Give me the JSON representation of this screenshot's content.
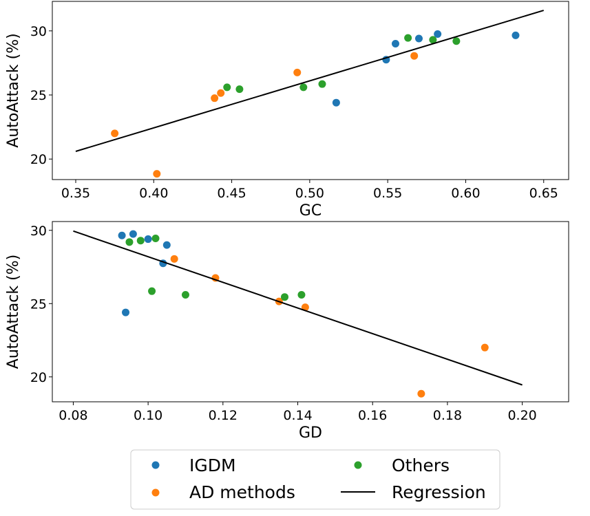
{
  "colors": {
    "IGDM": "#1f77b4",
    "AD methods": "#ff7f0e",
    "Others": "#2ca02c",
    "Regression": "#000000"
  },
  "legend": {
    "igdm": "IGDM",
    "ad": "AD methods",
    "others": "Others",
    "regression": "Regression"
  },
  "chart_data": [
    {
      "type": "scatter",
      "xlabel": "GC",
      "ylabel": "AutoAttack (%)",
      "xlim": [
        0.335,
        0.666
      ],
      "ylim": [
        18.4,
        32.3
      ],
      "xticks": [
        "0.35",
        "0.40",
        "0.45",
        "0.50",
        "0.55",
        "0.60",
        "0.65"
      ],
      "yticks": [
        "20",
        "25",
        "30"
      ],
      "series": [
        {
          "name": "IGDM",
          "points": [
            [
              0.517,
              24.4
            ],
            [
              0.549,
              27.75
            ],
            [
              0.555,
              29.0
            ],
            [
              0.57,
              29.4
            ],
            [
              0.582,
              29.75
            ],
            [
              0.632,
              29.65
            ]
          ]
        },
        {
          "name": "AD methods",
          "points": [
            [
              0.375,
              22.0
            ],
            [
              0.402,
              18.85
            ],
            [
              0.439,
              24.75
            ],
            [
              0.443,
              25.15
            ],
            [
              0.492,
              26.75
            ],
            [
              0.567,
              28.05
            ]
          ]
        },
        {
          "name": "Others",
          "points": [
            [
              0.447,
              25.6
            ],
            [
              0.455,
              25.45
            ],
            [
              0.496,
              25.6
            ],
            [
              0.508,
              25.85
            ],
            [
              0.563,
              29.45
            ],
            [
              0.579,
              29.3
            ],
            [
              0.594,
              29.2
            ]
          ]
        }
      ],
      "regression": [
        [
          0.35,
          20.6
        ],
        [
          0.65,
          31.6
        ]
      ]
    },
    {
      "type": "scatter",
      "xlabel": "GD",
      "ylabel": "AutoAttack (%)",
      "xlim": [
        0.0744,
        0.2124
      ],
      "ylim": [
        18.3,
        30.6
      ],
      "xticks": [
        "0.08",
        "0.10",
        "0.12",
        "0.14",
        "0.16",
        "0.18",
        "0.20"
      ],
      "yticks": [
        "20",
        "25",
        "30"
      ],
      "series": [
        {
          "name": "IGDM",
          "points": [
            [
              0.093,
              29.65
            ],
            [
              0.096,
              29.75
            ],
            [
              0.094,
              24.4
            ],
            [
              0.1,
              29.4
            ],
            [
              0.104,
              27.75
            ],
            [
              0.105,
              29.0
            ]
          ]
        },
        {
          "name": "AD methods",
          "points": [
            [
              0.107,
              28.05
            ],
            [
              0.118,
              26.75
            ],
            [
              0.135,
              25.15
            ],
            [
              0.142,
              24.75
            ],
            [
              0.173,
              18.85
            ],
            [
              0.19,
              22.0
            ]
          ]
        },
        {
          "name": "Others",
          "points": [
            [
              0.095,
              29.2
            ],
            [
              0.098,
              29.3
            ],
            [
              0.102,
              29.45
            ],
            [
              0.101,
              25.85
            ],
            [
              0.11,
              25.6
            ],
            [
              0.1365,
              25.45
            ],
            [
              0.141,
              25.6
            ]
          ]
        }
      ],
      "regression": [
        [
          0.08,
          29.95
        ],
        [
          0.2,
          19.45
        ]
      ]
    }
  ]
}
